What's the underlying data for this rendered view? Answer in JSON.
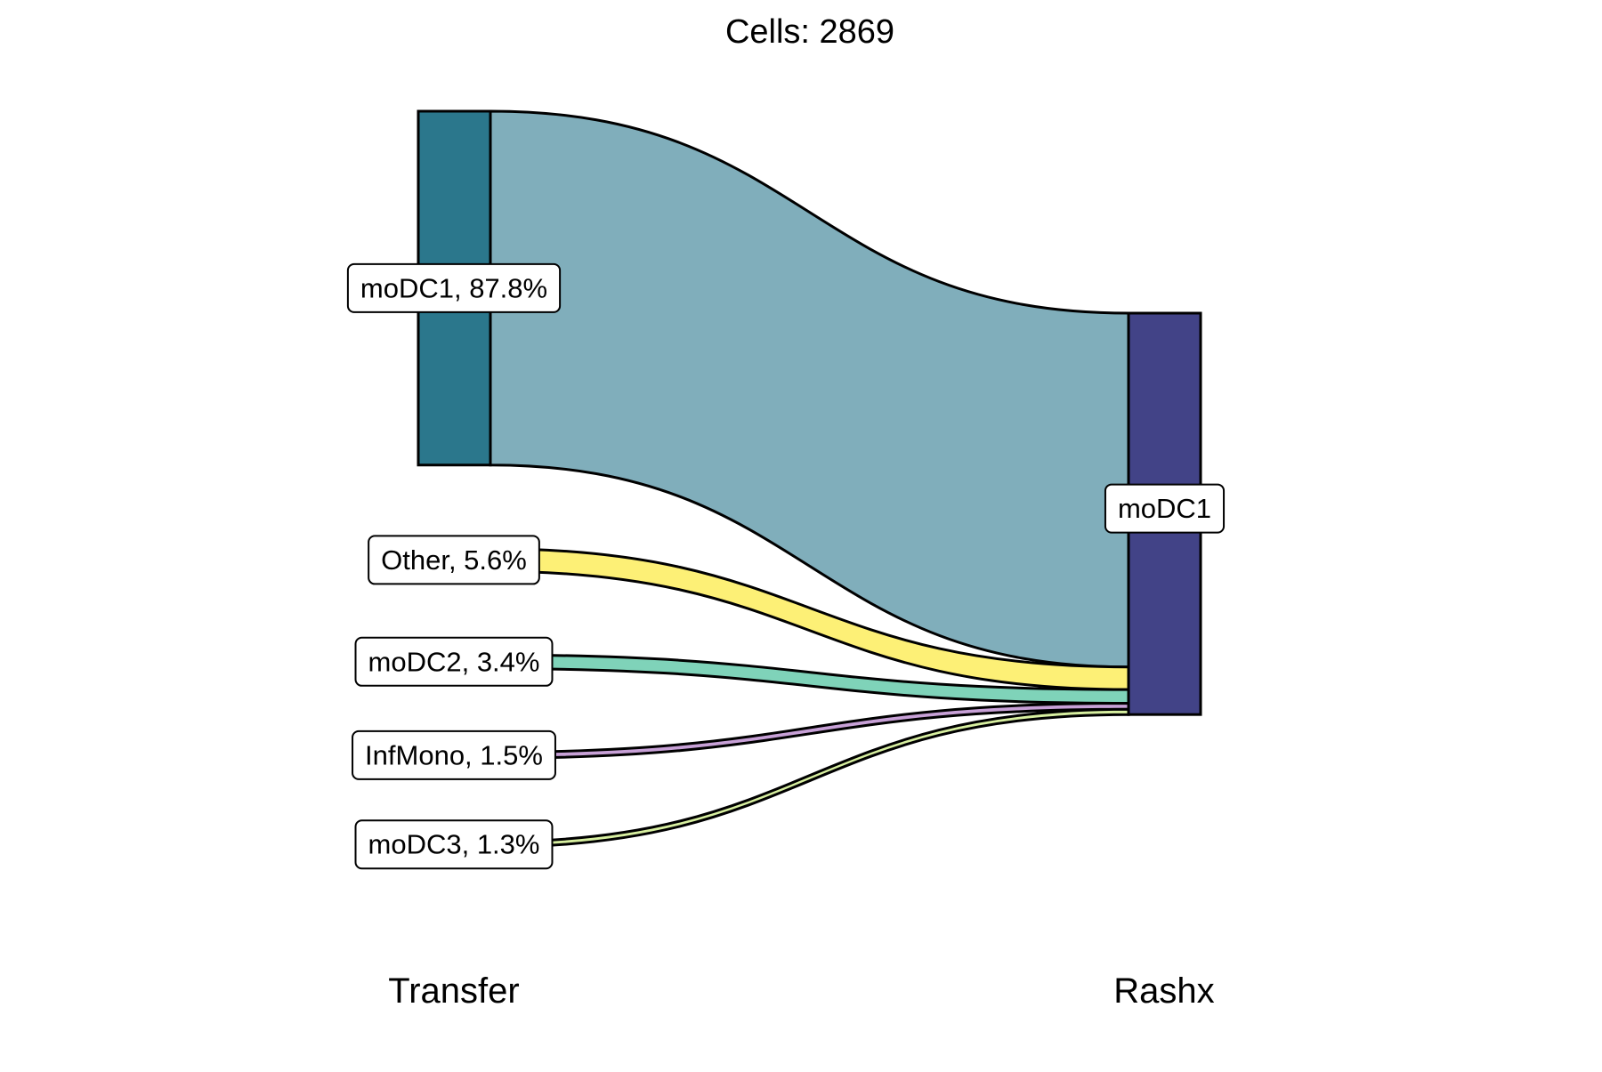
{
  "chart_data": {
    "type": "sankey",
    "title": "Cells:  2869",
    "total_cells": 2869,
    "axes": [
      "Transfer",
      "Rashx"
    ],
    "sources": [
      {
        "name": "moDC1",
        "percent": 87.8,
        "label": "moDC1, 87.8%",
        "node_color": "#2b778c",
        "flow_color": "#80aebb"
      },
      {
        "name": "Other",
        "percent": 5.6,
        "label": "Other, 5.6%",
        "node_color": "#fdf076",
        "flow_color": "#fdf076"
      },
      {
        "name": "moDC2",
        "percent": 3.4,
        "label": "moDC2, 3.4%",
        "node_color": "#7fd3b9",
        "flow_color": "#7fd3b9"
      },
      {
        "name": "InfMono",
        "percent": 1.5,
        "label": "InfMono, 1.5%",
        "node_color": "#c7a0d6",
        "flow_color": "#c7a0d6"
      },
      {
        "name": "moDC3",
        "percent": 1.3,
        "label": "moDC3, 1.3%",
        "node_color": "#d7efa0",
        "flow_color": "#d7efa0"
      }
    ],
    "targets": [
      {
        "name": "moDC1",
        "label": "moDC1",
        "node_color": "#424387"
      }
    ],
    "flows": [
      {
        "from": "moDC1",
        "to": "moDC1",
        "percent": 87.8
      },
      {
        "from": "Other",
        "to": "moDC1",
        "percent": 5.6
      },
      {
        "from": "moDC2",
        "to": "moDC1",
        "percent": 3.4
      },
      {
        "from": "InfMono",
        "to": "moDC1",
        "percent": 1.5
      },
      {
        "from": "moDC3",
        "to": "moDC1",
        "percent": 1.3
      }
    ],
    "legend": "none",
    "grid": false
  }
}
